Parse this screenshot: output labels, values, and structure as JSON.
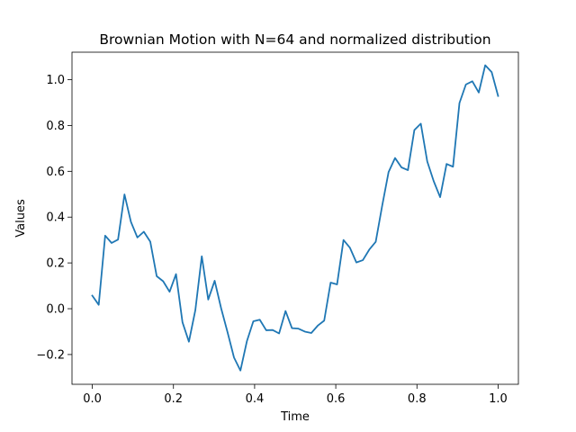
{
  "chart_data": {
    "type": "line",
    "title": "Brownian Motion with N=64 and normalized distribution",
    "xlabel": "Time",
    "ylabel": "Values",
    "xlim": [
      -0.05,
      1.05
    ],
    "ylim": [
      -0.33,
      1.12
    ],
    "xticks": [
      0.0,
      0.2,
      0.4,
      0.6,
      0.8,
      1.0
    ],
    "xtick_labels": [
      "0.0",
      "0.2",
      "0.4",
      "0.6",
      "0.8",
      "1.0"
    ],
    "yticks": [
      -0.2,
      0.0,
      0.2,
      0.4,
      0.6,
      0.8,
      1.0
    ],
    "ytick_labels": [
      "−0.2",
      "0.0",
      "0.2",
      "0.4",
      "0.6",
      "0.8",
      "1.0"
    ],
    "grid": false,
    "legend": "none",
    "colors": {
      "series": "#1f77b4"
    },
    "series": [
      {
        "x": [
          0.0,
          0.015873,
          0.031746,
          0.047619,
          0.063492,
          0.079365,
          0.095238,
          0.111111,
          0.126984,
          0.142857,
          0.15873,
          0.174603,
          0.190476,
          0.206349,
          0.222222,
          0.238095,
          0.253968,
          0.269841,
          0.285714,
          0.301587,
          0.31746,
          0.333333,
          0.349206,
          0.365079,
          0.380952,
          0.396825,
          0.412698,
          0.428571,
          0.444444,
          0.460317,
          0.47619,
          0.492063,
          0.507937,
          0.52381,
          0.539683,
          0.555556,
          0.571429,
          0.587302,
          0.603175,
          0.619048,
          0.634921,
          0.650794,
          0.666667,
          0.68254,
          0.698413,
          0.714286,
          0.730159,
          0.746032,
          0.761905,
          0.777778,
          0.793651,
          0.809524,
          0.825397,
          0.84127,
          0.857143,
          0.873016,
          0.888889,
          0.904762,
          0.920635,
          0.936508,
          0.952381,
          0.968254,
          0.984127,
          1.0
        ],
        "values": [
          0.057,
          0.017,
          0.319,
          0.287,
          0.302,
          0.499,
          0.379,
          0.311,
          0.336,
          0.293,
          0.142,
          0.12,
          0.074,
          0.151,
          -0.059,
          -0.144,
          -0.006,
          0.229,
          0.04,
          0.122,
          0.002,
          -0.103,
          -0.213,
          -0.27,
          -0.142,
          -0.055,
          -0.048,
          -0.094,
          -0.093,
          -0.108,
          -0.01,
          -0.085,
          -0.087,
          -0.1,
          -0.106,
          -0.074,
          -0.052,
          0.114,
          0.106,
          0.3,
          0.266,
          0.202,
          0.212,
          0.258,
          0.292,
          0.449,
          0.597,
          0.658,
          0.617,
          0.605,
          0.78,
          0.808,
          0.643,
          0.557,
          0.487,
          0.632,
          0.62,
          0.898,
          0.979,
          0.993,
          0.944,
          1.063,
          1.033,
          0.929
        ]
      }
    ]
  }
}
